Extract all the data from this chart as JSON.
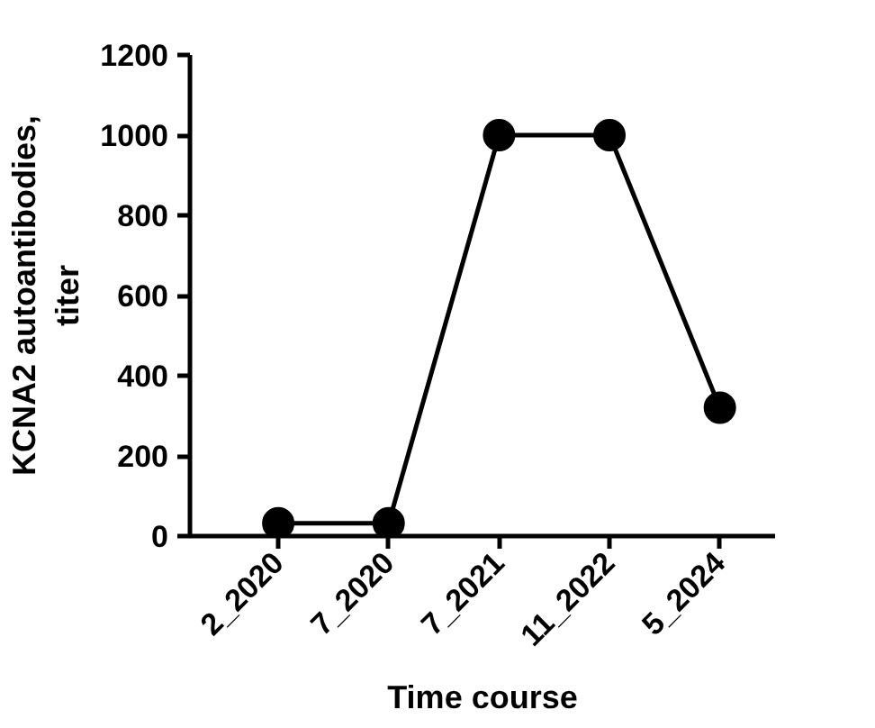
{
  "chart_data": {
    "type": "line",
    "xlabel": "Time course",
    "ylabel": "KCNA2 autoantibodies, titer",
    "categories": [
      "2_2020",
      "7_2020",
      "7_2021",
      "11_2022",
      "5_2024"
    ],
    "series": [
      {
        "color": "#000000",
        "values": [
          32,
          32,
          1000,
          1000,
          320
        ]
      }
    ],
    "ylim": [
      0,
      1200
    ],
    "yticks": [
      0,
      200,
      400,
      600,
      800,
      1000,
      1200
    ],
    "marker": "circle",
    "line_style": "solid",
    "grid": false
  }
}
